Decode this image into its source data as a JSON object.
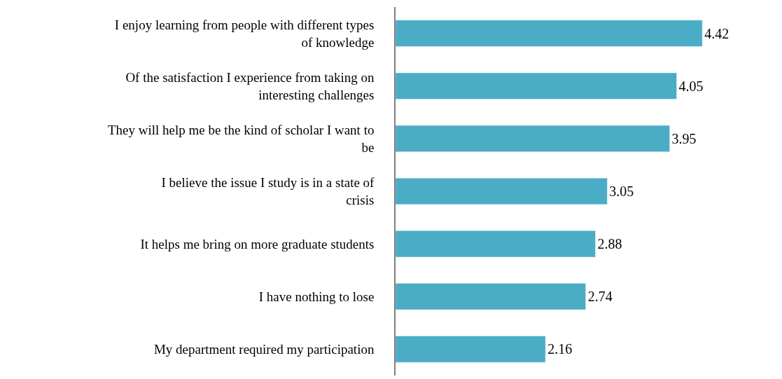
{
  "chart_data": {
    "type": "bar",
    "orientation": "horizontal",
    "categories": [
      "I enjoy learning from people with different types of knowledge",
      "Of the satisfaction I experience from taking on interesting challenges",
      "They will help me be the kind of scholar I want to be",
      "I believe the issue I study is in a state of crisis",
      "It helps me bring on more graduate students",
      "I have nothing to lose",
      "My department required my participation"
    ],
    "values": [
      4.42,
      4.05,
      3.95,
      3.05,
      2.88,
      2.74,
      2.16
    ],
    "color": "#4bacc6",
    "data_labels": true,
    "legend": false
  }
}
